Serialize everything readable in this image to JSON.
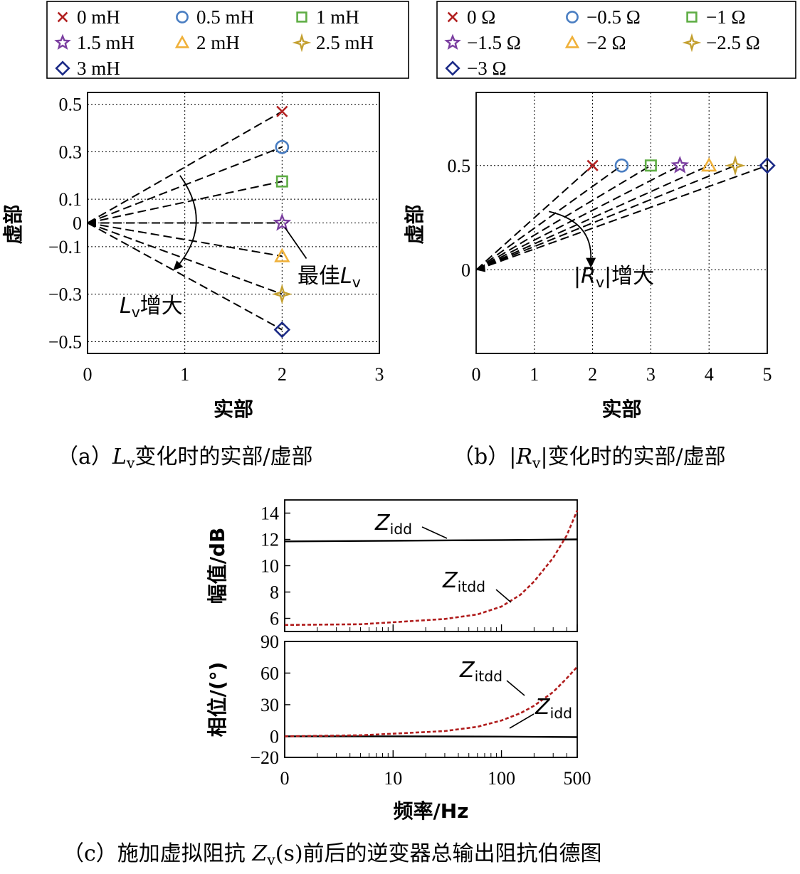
{
  "colors": {
    "red": "#b22222",
    "blue": "#4a7ec2",
    "green": "#5fad45",
    "purple": "#7b3fa0",
    "yellow": "#f0b13a",
    "gold": "#c4a030",
    "navy": "#1b2a86",
    "dashed_red": "#b01c1c"
  },
  "chart_data": [
    {
      "id": "a",
      "type": "scatter",
      "caption_prefix": "（a）",
      "caption_var": "L",
      "caption_sub": "v",
      "caption_text": "变化时的实部/虚部",
      "xlabel": "实部",
      "ylabel": "虚部",
      "xlim": [
        0,
        3
      ],
      "ylim": [
        -0.55,
        0.55
      ],
      "xticks": [
        "0",
        "1",
        "2",
        "3"
      ],
      "yticks": [
        {
          "v": 0.5,
          "t": "0.5"
        },
        {
          "v": 0.3,
          "t": "0.3"
        },
        {
          "v": 0.1,
          "t": "0.1"
        },
        {
          "v": 0,
          "t": "0"
        },
        {
          "v": -0.1,
          "t": "−0.1"
        },
        {
          "v": -0.3,
          "t": "−0.3"
        },
        {
          "v": -0.5,
          "t": "−0.5"
        }
      ],
      "grid": true,
      "legend_position": "top",
      "origin": [
        0,
        0
      ],
      "series": [
        {
          "name": "0 mH",
          "marker": "x",
          "color": "#b22222",
          "x": 2,
          "y": 0.47
        },
        {
          "name": "0.5 mH",
          "marker": "circle",
          "color": "#4a7ec2",
          "x": 2,
          "y": 0.32
        },
        {
          "name": "1 mH",
          "marker": "square",
          "color": "#5fad45",
          "x": 2,
          "y": 0.175
        },
        {
          "name": "1.5 mH",
          "marker": "star",
          "color": "#7b3fa0",
          "x": 2,
          "y": 0.0
        },
        {
          "name": "2 mH",
          "marker": "triangle",
          "color": "#f0b13a",
          "x": 2,
          "y": -0.14
        },
        {
          "name": "2.5 mH",
          "marker": "diamond4",
          "color": "#c4a030",
          "x": 2,
          "y": -0.3
        },
        {
          "name": "3 mH",
          "marker": "diamond",
          "color": "#1b2a86",
          "x": 2,
          "y": -0.45
        }
      ],
      "annotations": {
        "best_label": "最佳",
        "best_var": "L",
        "best_sub": "v",
        "increase_var": "L",
        "increase_sub": "v",
        "increase_text": "增大"
      }
    },
    {
      "id": "b",
      "type": "scatter",
      "caption_prefix": "（b）",
      "caption_var": "|R",
      "caption_sub": "v",
      "caption_bar": "|",
      "caption_text": "变化时的实部/虚部",
      "xlabel": "实部",
      "ylabel": "虚部",
      "xlim": [
        0,
        5
      ],
      "ylim": [
        -0.4,
        0.85
      ],
      "xticks": [
        "0",
        "1",
        "2",
        "3",
        "4",
        "5"
      ],
      "yticks": [
        {
          "v": 0.5,
          "t": "0.5"
        },
        {
          "v": 0,
          "t": "0"
        }
      ],
      "grid": true,
      "legend_position": "top",
      "origin": [
        0,
        0
      ],
      "series": [
        {
          "name": "0 Ω",
          "marker": "x",
          "color": "#b22222",
          "x": 2,
          "y": 0.5
        },
        {
          "name": "−0.5 Ω",
          "marker": "circle",
          "color": "#4a7ec2",
          "x": 2.5,
          "y": 0.5
        },
        {
          "name": "−1 Ω",
          "marker": "square",
          "color": "#5fad45",
          "x": 3,
          "y": 0.5
        },
        {
          "name": "−1.5 Ω",
          "marker": "star",
          "color": "#7b3fa0",
          "x": 3.5,
          "y": 0.5
        },
        {
          "name": "−2 Ω",
          "marker": "triangle",
          "color": "#f0b13a",
          "x": 4,
          "y": 0.5
        },
        {
          "name": "−2.5 Ω",
          "marker": "diamond4",
          "color": "#c4a030",
          "x": 4.45,
          "y": 0.5
        },
        {
          "name": "−3 Ω",
          "marker": "diamond",
          "color": "#1b2a86",
          "x": 5,
          "y": 0.5
        }
      ],
      "annotations": {
        "increase_pre": "|",
        "increase_var": "R",
        "increase_sub": "v",
        "increase_post": "|",
        "increase_text": "增大"
      }
    },
    {
      "id": "c",
      "type": "line",
      "caption_prefix": "（c）施加虚拟阻抗 ",
      "caption_var": "Z",
      "caption_sub": "v",
      "caption_arg": "(s)",
      "caption_text": "前后的逆变器总输出阻抗伯德图",
      "xlabel": "频率/Hz",
      "x_scale": "log",
      "xticks": [
        "0",
        "10",
        "100",
        "500"
      ],
      "mag": {
        "ylabel": "幅值/dB",
        "ylim": [
          5,
          15
        ],
        "yticks": [
          "14",
          "12",
          "10",
          "8",
          "6"
        ],
        "series": [
          {
            "name_var": "Z",
            "name_sub": "idd",
            "style": "solid",
            "color": "#000000",
            "freq": [
              1,
              10,
              100,
              500
            ],
            "values": [
              11.85,
              11.9,
              11.95,
              12.0
            ]
          },
          {
            "name_var": "Z",
            "name_sub": "itdd",
            "style": "dashed",
            "color": "#b01c1c",
            "freq": [
              1,
              5,
              10,
              30,
              60,
              100,
              150,
              200,
              300,
              400,
              500
            ],
            "values": [
              5.5,
              5.55,
              5.7,
              5.95,
              6.3,
              6.9,
              7.8,
              8.8,
              10.6,
              12.3,
              14.2
            ]
          }
        ]
      },
      "phase": {
        "ylabel": "相位/(°)",
        "ylim": [
          -20,
          90
        ],
        "yticks": [
          "90",
          "60",
          "30",
          "0",
          "−20"
        ],
        "series": [
          {
            "name_var": "Z",
            "name_sub": "idd",
            "style": "solid",
            "color": "#000000",
            "freq": [
              1,
              10,
              100,
              500
            ],
            "values": [
              0,
              0,
              -0.3,
              -0.8
            ]
          },
          {
            "name_var": "Z",
            "name_sub": "itdd",
            "style": "dashed",
            "color": "#b01c1c",
            "freq": [
              1,
              5,
              10,
              30,
              60,
              100,
              150,
              200,
              300,
              400,
              500
            ],
            "values": [
              0,
              1,
              2.5,
              5,
              9,
              15,
              22,
              29,
              42,
              55,
              66
            ]
          }
        ]
      }
    }
  ]
}
